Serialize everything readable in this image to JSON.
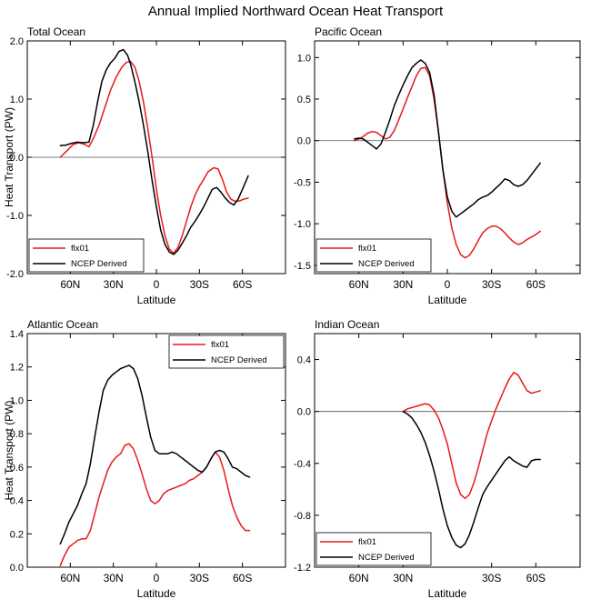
{
  "figure": {
    "title": "Annual Implied Northward Ocean Heat Transport"
  },
  "colors": {
    "flx": "#e8191c",
    "ncep": "#000000"
  },
  "chart_data": [
    {
      "id": "total",
      "type": "line",
      "title": "Total Ocean",
      "xlabel": "Latitude",
      "ylabel": "Heat Transport (PW)",
      "xlim": [
        90,
        -90
      ],
      "ylim": [
        -2.0,
        2.0
      ],
      "xticks": [
        60,
        30,
        0,
        -30,
        -60
      ],
      "xtick_labels": [
        "60N",
        "30N",
        "0",
        "30S",
        "60S"
      ],
      "yticks": [
        -2.0,
        -1.0,
        0.0,
        1.0,
        2.0
      ],
      "ytick_labels": [
        "-2.0",
        "-1.0",
        "0.0",
        "1.0",
        "2.0"
      ],
      "zero_line": true,
      "legend": {
        "position": "bottom-left",
        "entries": [
          "flx01",
          "NCEP Derived"
        ]
      },
      "series": [
        {
          "name": "flx01",
          "color": "flx",
          "x": [
            67,
            62,
            58,
            54,
            50,
            47,
            44,
            40,
            36,
            32,
            28,
            24,
            21,
            18,
            15,
            12,
            9,
            6,
            3,
            0,
            -3,
            -6,
            -9,
            -12,
            -15,
            -18,
            -21,
            -24,
            -27,
            -30,
            -33,
            -36,
            -40,
            -43,
            -46,
            -49,
            -52,
            -55,
            -58,
            -61,
            -64
          ],
          "y": [
            0.0,
            0.12,
            0.22,
            0.25,
            0.22,
            0.18,
            0.32,
            0.55,
            0.85,
            1.15,
            1.38,
            1.55,
            1.63,
            1.65,
            1.55,
            1.3,
            0.95,
            0.5,
            0.0,
            -0.55,
            -1.0,
            -1.35,
            -1.58,
            -1.65,
            -1.55,
            -1.35,
            -1.1,
            -0.85,
            -0.65,
            -0.5,
            -0.38,
            -0.25,
            -0.18,
            -0.2,
            -0.38,
            -0.6,
            -0.72,
            -0.76,
            -0.75,
            -0.72,
            -0.7
          ]
        },
        {
          "name": "NCEP Derived",
          "color": "ncep",
          "x": [
            67,
            63,
            59,
            55,
            51,
            47,
            44,
            41,
            38,
            35,
            32,
            29,
            26,
            23,
            20,
            18,
            15,
            12,
            9,
            6,
            3,
            0,
            -3,
            -6,
            -9,
            -12,
            -15,
            -18,
            -21,
            -24,
            -27,
            -30,
            -33,
            -36,
            -39,
            -42,
            -45,
            -48,
            -51,
            -54,
            -57,
            -60,
            -64
          ],
          "y": [
            0.2,
            0.21,
            0.24,
            0.26,
            0.25,
            0.26,
            0.55,
            0.95,
            1.3,
            1.5,
            1.62,
            1.7,
            1.82,
            1.85,
            1.75,
            1.6,
            1.3,
            0.95,
            0.55,
            0.1,
            -0.4,
            -0.85,
            -1.25,
            -1.5,
            -1.63,
            -1.67,
            -1.6,
            -1.48,
            -1.35,
            -1.2,
            -1.1,
            -0.98,
            -0.85,
            -0.7,
            -0.55,
            -0.52,
            -0.6,
            -0.7,
            -0.78,
            -0.82,
            -0.72,
            -0.55,
            -0.32
          ]
        }
      ]
    },
    {
      "id": "pacific",
      "type": "line",
      "title": "Pacific Ocean",
      "xlabel": "Latitude",
      "ylabel": "",
      "xlim": [
        90,
        -90
      ],
      "ylim": [
        -1.6,
        1.2
      ],
      "xticks": [
        60,
        30,
        0,
        -30,
        -60
      ],
      "xtick_labels": [
        "60N",
        "30N",
        "0",
        "30S",
        "60S"
      ],
      "yticks": [
        -1.5,
        -1.0,
        -0.5,
        0.0,
        0.5,
        1.0
      ],
      "ytick_labels": [
        "-1.5",
        "-1.0",
        "-0.5",
        "0.0",
        "0.5",
        "1.0"
      ],
      "zero_line": true,
      "legend": {
        "position": "bottom-left",
        "entries": [
          "flx01",
          "NCEP Derived"
        ]
      },
      "series": [
        {
          "name": "flx01",
          "color": "flx",
          "x": [
            63,
            60,
            57,
            54,
            51,
            48,
            45,
            42,
            39,
            36,
            33,
            30,
            27,
            24,
            21,
            18,
            15,
            12,
            9,
            6,
            3,
            0,
            -3,
            -6,
            -9,
            -12,
            -15,
            -18,
            -21,
            -24,
            -27,
            -30,
            -33,
            -36,
            -39,
            -42,
            -45,
            -48,
            -51,
            -54,
            -57,
            -60,
            -63
          ],
          "y": [
            0.0,
            0.02,
            0.05,
            0.09,
            0.11,
            0.1,
            0.06,
            0.02,
            0.04,
            0.12,
            0.25,
            0.38,
            0.52,
            0.65,
            0.78,
            0.87,
            0.88,
            0.78,
            0.5,
            0.1,
            -0.35,
            -0.75,
            -1.05,
            -1.25,
            -1.37,
            -1.41,
            -1.38,
            -1.3,
            -1.2,
            -1.11,
            -1.06,
            -1.03,
            -1.03,
            -1.06,
            -1.11,
            -1.17,
            -1.22,
            -1.25,
            -1.23,
            -1.19,
            -1.16,
            -1.13,
            -1.09
          ]
        },
        {
          "name": "NCEP Derived",
          "color": "ncep",
          "x": [
            63,
            60,
            57,
            54,
            51,
            48,
            45,
            42,
            39,
            36,
            33,
            30,
            27,
            24,
            21,
            18,
            15,
            12,
            9,
            6,
            3,
            0,
            -3,
            -6,
            -9,
            -12,
            -15,
            -18,
            -21,
            -24,
            -27,
            -30,
            -33,
            -36,
            -39,
            -42,
            -45,
            -48,
            -51,
            -54,
            -57,
            -60,
            -63
          ],
          "y": [
            0.02,
            0.03,
            0.02,
            -0.02,
            -0.06,
            -0.1,
            -0.04,
            0.1,
            0.25,
            0.42,
            0.55,
            0.67,
            0.78,
            0.88,
            0.93,
            0.97,
            0.93,
            0.82,
            0.55,
            0.1,
            -0.35,
            -0.68,
            -0.85,
            -0.92,
            -0.88,
            -0.84,
            -0.8,
            -0.76,
            -0.71,
            -0.68,
            -0.66,
            -0.62,
            -0.57,
            -0.52,
            -0.46,
            -0.48,
            -0.53,
            -0.55,
            -0.53,
            -0.48,
            -0.41,
            -0.34,
            -0.27
          ]
        }
      ]
    },
    {
      "id": "atlantic",
      "type": "line",
      "title": "Atlantic Ocean",
      "xlabel": "Latitude",
      "ylabel": "Heat Transport (PW)",
      "xlim": [
        90,
        -90
      ],
      "ylim": [
        0.0,
        1.4
      ],
      "xticks": [
        60,
        30,
        0,
        -30,
        -60
      ],
      "xtick_labels": [
        "60N",
        "30N",
        "0",
        "30S",
        "60S"
      ],
      "yticks": [
        0.0,
        0.2,
        0.4,
        0.6,
        0.8,
        1.0,
        1.2,
        1.4
      ],
      "ytick_labels": [
        "0.0",
        "0.2",
        "0.4",
        "0.6",
        "0.8",
        "1.0",
        "1.2",
        "1.4"
      ],
      "zero_line": false,
      "legend": {
        "position": "top-right",
        "entries": [
          "flx01",
          "NCEP Derived"
        ]
      },
      "series": [
        {
          "name": "flx01",
          "color": "flx",
          "x": [
            67,
            64,
            61,
            58,
            55,
            52,
            49,
            46,
            43,
            40,
            37,
            34,
            31,
            28,
            25,
            22,
            19,
            16,
            13,
            10,
            7,
            4,
            1,
            -2,
            -5,
            -8,
            -11,
            -14,
            -17,
            -20,
            -23,
            -26,
            -29,
            -32,
            -35,
            -38,
            -41,
            -44,
            -47,
            -50,
            -53,
            -56,
            -59,
            -62,
            -65
          ],
          "y": [
            0.01,
            0.07,
            0.12,
            0.14,
            0.16,
            0.17,
            0.17,
            0.22,
            0.32,
            0.42,
            0.5,
            0.58,
            0.63,
            0.66,
            0.68,
            0.73,
            0.74,
            0.71,
            0.64,
            0.56,
            0.47,
            0.4,
            0.38,
            0.4,
            0.44,
            0.46,
            0.47,
            0.48,
            0.49,
            0.5,
            0.52,
            0.53,
            0.55,
            0.57,
            0.6,
            0.65,
            0.69,
            0.66,
            0.58,
            0.47,
            0.37,
            0.3,
            0.25,
            0.22,
            0.22
          ]
        },
        {
          "name": "NCEP Derived",
          "color": "ncep",
          "x": [
            67,
            64,
            61,
            58,
            55,
            52,
            49,
            46,
            43,
            40,
            37,
            34,
            31,
            28,
            25,
            22,
            19,
            16,
            13,
            10,
            7,
            4,
            1,
            -2,
            -5,
            -8,
            -11,
            -14,
            -17,
            -20,
            -23,
            -26,
            -29,
            -32,
            -35,
            -38,
            -41,
            -44,
            -47,
            -50,
            -53,
            -56,
            -59,
            -62,
            -65
          ],
          "y": [
            0.14,
            0.2,
            0.27,
            0.32,
            0.37,
            0.44,
            0.5,
            0.62,
            0.78,
            0.93,
            1.06,
            1.12,
            1.15,
            1.17,
            1.19,
            1.2,
            1.21,
            1.19,
            1.13,
            1.03,
            0.9,
            0.78,
            0.7,
            0.68,
            0.68,
            0.68,
            0.69,
            0.68,
            0.66,
            0.64,
            0.62,
            0.6,
            0.58,
            0.57,
            0.6,
            0.65,
            0.69,
            0.7,
            0.69,
            0.65,
            0.6,
            0.59,
            0.57,
            0.55,
            0.54
          ]
        }
      ]
    },
    {
      "id": "indian",
      "type": "line",
      "title": "Indian Ocean",
      "xlabel": "Latitude",
      "ylabel": "",
      "xlim": [
        90,
        -90
      ],
      "ylim": [
        -1.2,
        0.6
      ],
      "xticks": [
        60,
        30,
        -30,
        -60
      ],
      "xtick_labels": [
        "60N",
        "30N",
        "30S",
        "60S"
      ],
      "yticks": [
        -1.2,
        -0.8,
        -0.4,
        0.0,
        0.4
      ],
      "ytick_labels": [
        "-1.2",
        "-0.8",
        "-0.4",
        "0.0",
        "0.4"
      ],
      "zero_line": true,
      "legend": {
        "position": "bottom-left",
        "entries": [
          "flx01",
          "NCEP Derived"
        ]
      },
      "series": [
        {
          "name": "flx01",
          "color": "flx",
          "x": [
            30,
            27,
            24,
            21,
            18,
            15,
            12,
            9,
            6,
            3,
            0,
            -3,
            -6,
            -9,
            -12,
            -15,
            -18,
            -21,
            -24,
            -27,
            -30,
            -33,
            -36,
            -39,
            -42,
            -45,
            -48,
            -51,
            -54,
            -57,
            -60,
            -63
          ],
          "y": [
            0.0,
            0.02,
            0.03,
            0.04,
            0.05,
            0.06,
            0.05,
            0.01,
            -0.05,
            -0.14,
            -0.25,
            -0.4,
            -0.55,
            -0.64,
            -0.67,
            -0.64,
            -0.55,
            -0.43,
            -0.3,
            -0.17,
            -0.07,
            0.02,
            0.1,
            0.18,
            0.25,
            0.3,
            0.28,
            0.22,
            0.16,
            0.14,
            0.15,
            0.16
          ]
        },
        {
          "name": "NCEP Derived",
          "color": "ncep",
          "x": [
            30,
            27,
            24,
            21,
            18,
            15,
            12,
            9,
            6,
            3,
            0,
            -3,
            -6,
            -9,
            -12,
            -15,
            -18,
            -21,
            -24,
            -27,
            -30,
            -33,
            -36,
            -39,
            -42,
            -45,
            -48,
            -51,
            -54,
            -57,
            -60,
            -63
          ],
          "y": [
            0.0,
            -0.02,
            -0.05,
            -0.1,
            -0.16,
            -0.24,
            -0.34,
            -0.46,
            -0.6,
            -0.75,
            -0.88,
            -0.97,
            -1.03,
            -1.05,
            -1.02,
            -0.95,
            -0.85,
            -0.74,
            -0.64,
            -0.58,
            -0.53,
            -0.48,
            -0.43,
            -0.38,
            -0.35,
            -0.38,
            -0.4,
            -0.42,
            -0.43,
            -0.38,
            -0.37,
            -0.37
          ]
        }
      ]
    }
  ]
}
